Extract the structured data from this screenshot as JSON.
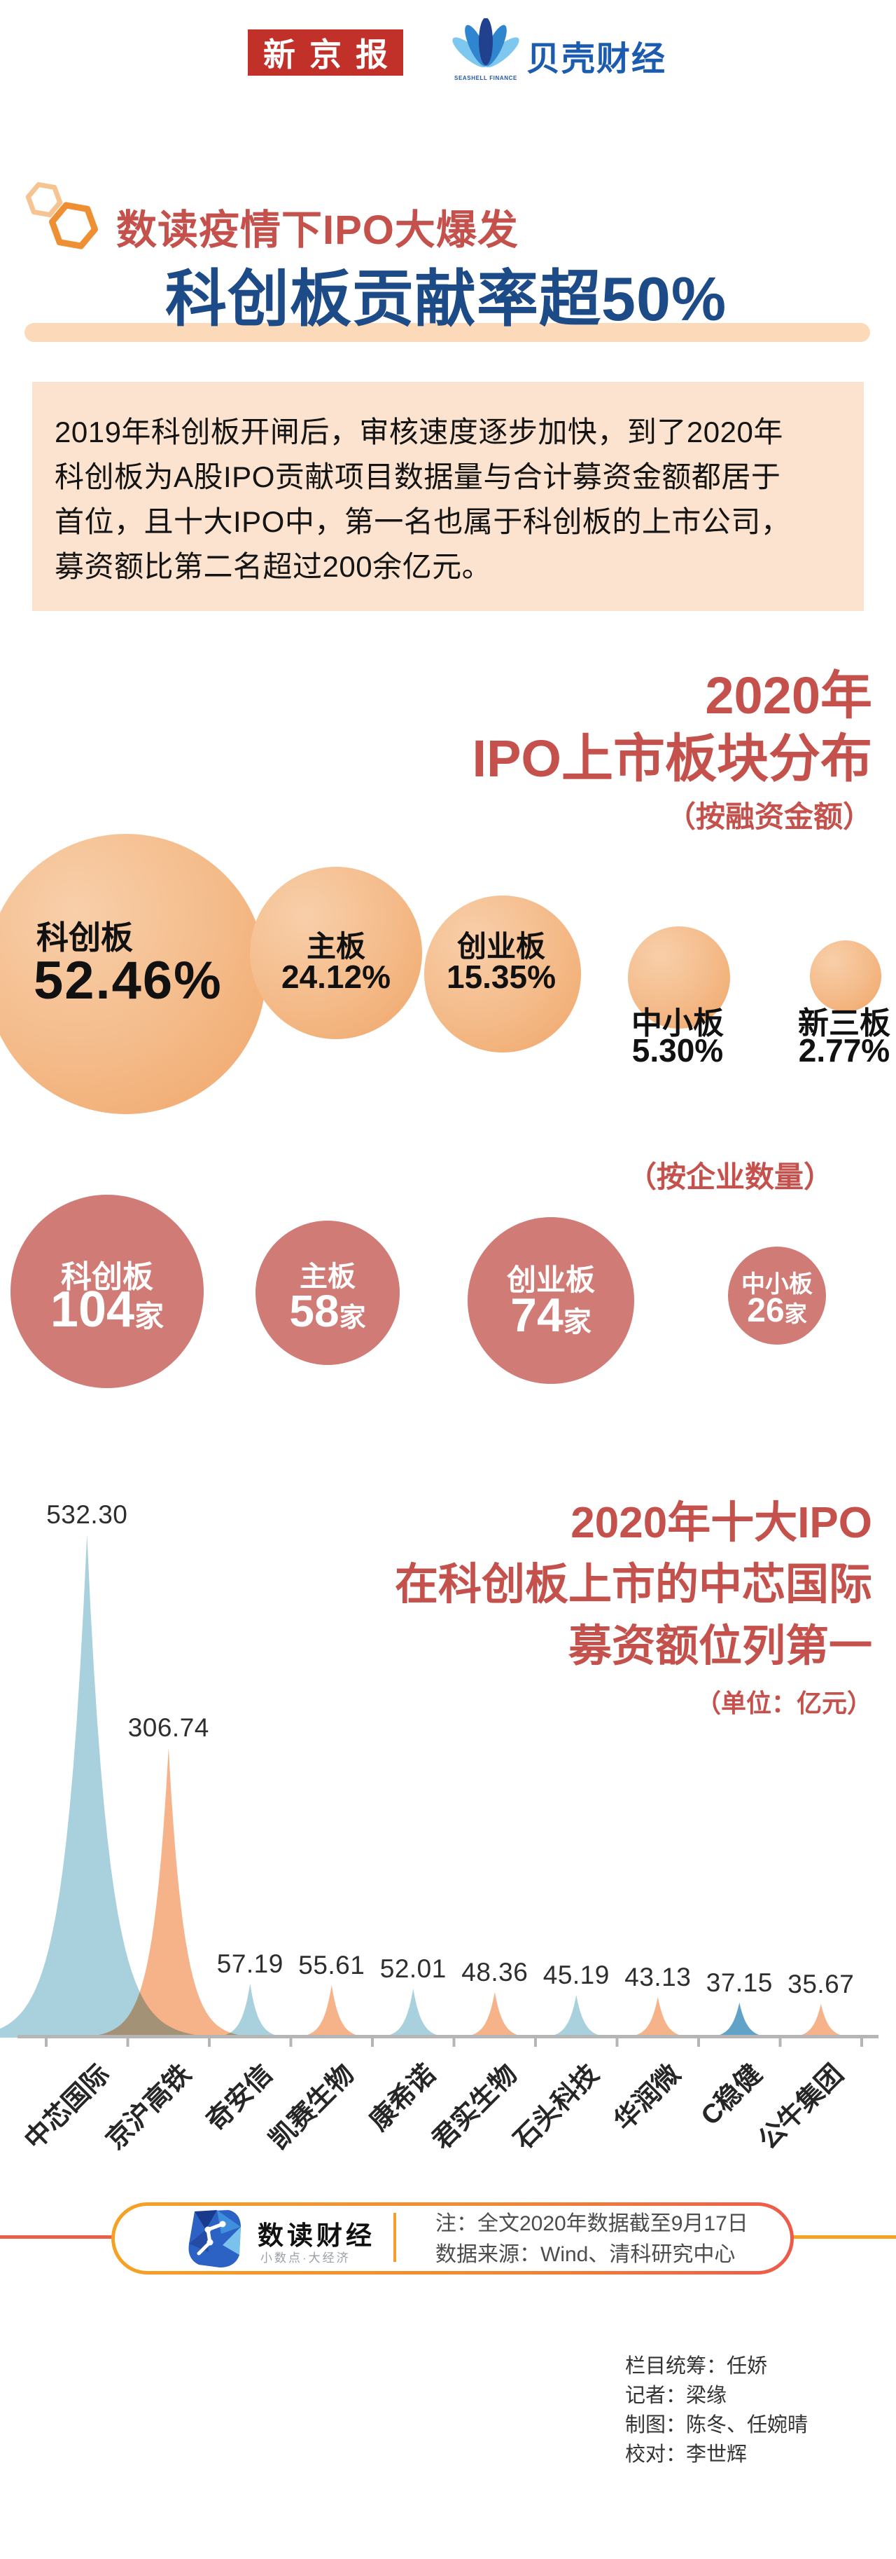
{
  "header": {
    "xjb_logo_text": "新京报",
    "seashell_logo_sub": "SEASHELL FINANCE",
    "bke_logo_text": "贝壳财经"
  },
  "title": {
    "kicker": "数读疫情下IPO大爆发",
    "headline": "科创板贡献率超50%"
  },
  "intro": {
    "lines": [
      "2019年科创板开闸后，审核速度逐步加快，到了2020年",
      "科创板为A股IPO贡献项目数据量与合计募资金额都居于",
      "首位，且十大IPO中，第一名也属于科创板的上市公司，",
      "募资额比第二名超过200余亿元。"
    ]
  },
  "colors": {
    "accent_red": "#c4514c",
    "navy": "#1d4b87",
    "peach_bg": "#fce3cf",
    "underline_bar": "#fcd9b8",
    "funding_bubble": "#f0a668",
    "count_bubble": "#d07b76",
    "spike_blue": "#a9d1dd",
    "spike_orange": "#f6b288",
    "spike_dark_blue": "#61a3c6",
    "axis_gray": "#b5b5b5",
    "xjb_red": "#c2302a",
    "bke_blue": "#1c5cb0",
    "footer_border_start": "#f6a124",
    "footer_border_end": "#ee5a4a"
  },
  "chart_data": [
    {
      "type": "bubble",
      "title_line1": "2020年",
      "title_line2": "IPO上市板块分布",
      "subtitle": "（按融资金额）",
      "points": [
        {
          "label": "科创板",
          "value": 52.46,
          "display": "52.46%"
        },
        {
          "label": "主板",
          "value": 24.12,
          "display": "24.12%"
        },
        {
          "label": "创业板",
          "value": 15.35,
          "display": "15.35%"
        },
        {
          "label": "中小板",
          "value": 5.3,
          "display": "5.30%"
        },
        {
          "label": "新三板",
          "value": 2.77,
          "display": "2.77%"
        }
      ]
    },
    {
      "type": "bubble",
      "subtitle": "（按企业数量）",
      "points": [
        {
          "label": "科创板",
          "value": 104,
          "display": "104",
          "unit": "家"
        },
        {
          "label": "主板",
          "value": 58,
          "display": "58",
          "unit": "家"
        },
        {
          "label": "创业板",
          "value": 74,
          "display": "74",
          "unit": "家"
        },
        {
          "label": "中小板",
          "value": 26,
          "display": "26",
          "unit": "家"
        }
      ]
    },
    {
      "type": "area",
      "title_lines": [
        "2020年十大IPO",
        "在科创板上市的中芯国际",
        "募资额位列第一"
      ],
      "unit_label": "（单位：亿元）",
      "categories": [
        "中芯国际",
        "京沪高铁",
        "奇安信",
        "凯赛生物",
        "康希诺",
        "君实生物",
        "石头科技",
        "华润微",
        "C稳健",
        "公牛集团"
      ],
      "values": [
        532.3,
        306.74,
        57.19,
        55.61,
        52.01,
        48.36,
        45.19,
        43.13,
        37.15,
        35.67
      ],
      "value_labels": [
        "532.30",
        "306.74",
        "57.19",
        "55.61",
        "52.01",
        "48.36",
        "45.19",
        "43.13",
        "37.15",
        "35.67"
      ],
      "series_colors": [
        "#a9d1dd",
        "#f6b288",
        "#a9d1dd",
        "#f6b288",
        "#a9d1dd",
        "#f6b288",
        "#a9d1dd",
        "#f6b288",
        "#61a3c6",
        "#f6b288"
      ],
      "ylim": [
        0,
        560
      ],
      "grid": false,
      "legend": false
    }
  ],
  "footer": {
    "logo_name": "数读财经",
    "logo_sub": "小数点·大经济",
    "notes": [
      "注：全文2020年数据截至9月17日",
      "数据来源：Wind、清科研究中心"
    ]
  },
  "credits": {
    "lines": [
      "栏目统筹：任娇",
      "记者：梁缘",
      "制图：陈冬、任婉晴",
      "校对：李世辉"
    ]
  }
}
